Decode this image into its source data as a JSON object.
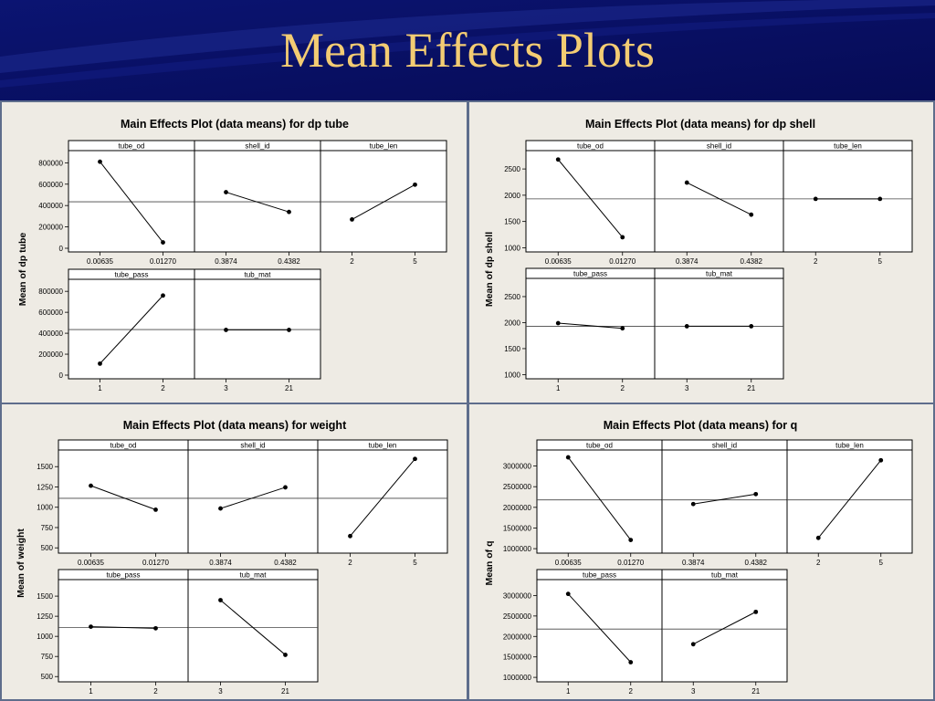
{
  "slide_title": "Mean Effects Plots",
  "chart_data": [
    {
      "type": "line",
      "title": "Main Effects Plot (data means) for dp tube",
      "ylabel": "Mean of dp tube",
      "ylim": [
        0,
        880000
      ],
      "yticks": [
        0,
        200000,
        400000,
        600000,
        800000
      ],
      "ytick_labels": [
        "0",
        "200000",
        "400000",
        "600000",
        "800000"
      ],
      "grand_mean": 435000,
      "factors": [
        {
          "name": "tube_od",
          "levels": [
            "0.00635",
            "0.01270"
          ],
          "values": [
            810000,
            55000
          ]
        },
        {
          "name": "shell_id",
          "levels": [
            "0.3874",
            "0.4382"
          ],
          "values": [
            525000,
            340000
          ]
        },
        {
          "name": "tube_len",
          "levels": [
            "2",
            "5"
          ],
          "values": [
            270000,
            595000
          ]
        },
        {
          "name": "tube_pass",
          "levels": [
            "1",
            "2"
          ],
          "values": [
            110000,
            760000
          ]
        },
        {
          "name": "tub_mat",
          "levels": [
            "3",
            "21"
          ],
          "values": [
            432000,
            432000
          ]
        }
      ]
    },
    {
      "type": "line",
      "title": "Main Effects Plot (data means) for dp shell",
      "ylabel": "Mean of dp shell",
      "ylim": [
        990,
        2780
      ],
      "yticks": [
        1000,
        1500,
        2000,
        2500
      ],
      "ytick_labels": [
        "1000",
        "1500",
        "2000",
        "2500"
      ],
      "grand_mean": 1930,
      "factors": [
        {
          "name": "tube_od",
          "levels": [
            "0.00635",
            "0.01270"
          ],
          "values": [
            2680,
            1200
          ]
        },
        {
          "name": "shell_id",
          "levels": [
            "0.3874",
            "0.4382"
          ],
          "values": [
            2240,
            1630
          ]
        },
        {
          "name": "tube_len",
          "levels": [
            "2",
            "5"
          ],
          "values": [
            1930,
            1930
          ]
        },
        {
          "name": "tube_pass",
          "levels": [
            "1",
            "2"
          ],
          "values": [
            1990,
            1890
          ]
        },
        {
          "name": "tub_mat",
          "levels": [
            "3",
            "21"
          ],
          "values": [
            1930,
            1930
          ]
        }
      ]
    },
    {
      "type": "line",
      "title": "Main Effects Plot (data means) for weight",
      "ylabel": "Mean of weight",
      "ylim": [
        480,
        1660
      ],
      "yticks": [
        500,
        750,
        1000,
        1250,
        1500
      ],
      "ytick_labels": [
        "500",
        "750",
        "1000",
        "1250",
        "1500"
      ],
      "grand_mean": 1110,
      "factors": [
        {
          "name": "tube_od",
          "levels": [
            "0.00635",
            "0.01270"
          ],
          "values": [
            1265,
            970
          ]
        },
        {
          "name": "shell_id",
          "levels": [
            "0.3874",
            "0.4382"
          ],
          "values": [
            985,
            1245
          ]
        },
        {
          "name": "tube_len",
          "levels": [
            "2",
            "5"
          ],
          "values": [
            645,
            1595
          ]
        },
        {
          "name": "tube_pass",
          "levels": [
            "1",
            "2"
          ],
          "values": [
            1120,
            1100
          ]
        },
        {
          "name": "tub_mat",
          "levels": [
            "3",
            "21"
          ],
          "values": [
            1450,
            770
          ]
        }
      ]
    },
    {
      "type": "line",
      "title": "Main Effects Plot (data means) for q",
      "ylabel": "Mean of q",
      "ylim": [
        980000,
        3300000
      ],
      "yticks": [
        1000000,
        1500000,
        2000000,
        2500000,
        3000000
      ],
      "ytick_labels": [
        "1000000",
        "1500000",
        "2000000",
        "2500000",
        "3000000"
      ],
      "grand_mean": 2180000,
      "factors": [
        {
          "name": "tube_od",
          "levels": [
            "0.00635",
            "0.01270"
          ],
          "values": [
            3210000,
            1210000
          ]
        },
        {
          "name": "shell_id",
          "levels": [
            "0.3874",
            "0.4382"
          ],
          "values": [
            2080000,
            2320000
          ]
        },
        {
          "name": "tube_len",
          "levels": [
            "2",
            "5"
          ],
          "values": [
            1260000,
            3140000
          ]
        },
        {
          "name": "tube_pass",
          "levels": [
            "1",
            "2"
          ],
          "values": [
            3040000,
            1370000
          ]
        },
        {
          "name": "tub_mat",
          "levels": [
            "3",
            "21"
          ],
          "values": [
            1810000,
            2600000
          ]
        }
      ]
    }
  ]
}
